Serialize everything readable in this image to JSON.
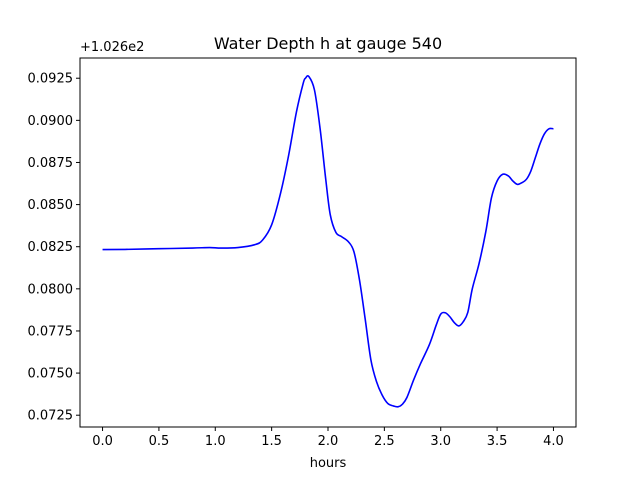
{
  "chart_data": {
    "type": "line",
    "title": "Water Depth h at gauge 540",
    "xlabel": "hours",
    "ylabel": "",
    "y_offset_label": "+1.026e2",
    "y_offset": 102.6,
    "xlim": [
      -0.2,
      4.2
    ],
    "ylim": [
      0.0718,
      0.0937
    ],
    "xticks": [
      0.0,
      0.5,
      1.0,
      1.5,
      2.0,
      2.5,
      3.0,
      3.5,
      4.0
    ],
    "xtick_labels": [
      "0.0",
      "0.5",
      "1.0",
      "1.5",
      "2.0",
      "2.5",
      "3.0",
      "3.5",
      "4.0"
    ],
    "yticks": [
      0.0725,
      0.075,
      0.0775,
      0.08,
      0.0825,
      0.085,
      0.0875,
      0.09,
      0.0925
    ],
    "ytick_labels": [
      "0.0725",
      "0.0750",
      "0.0775",
      "0.0800",
      "0.0825",
      "0.0850",
      "0.0875",
      "0.0900",
      "0.0925"
    ],
    "grid": false,
    "series": [
      {
        "color": "#0000ff",
        "x": [
          0.0,
          0.2,
          0.5,
          0.8,
          0.95,
          1.05,
          1.2,
          1.35,
          1.42,
          1.5,
          1.58,
          1.65,
          1.72,
          1.78,
          1.8,
          1.83,
          1.88,
          1.93,
          1.98,
          2.02,
          2.07,
          2.12,
          2.18,
          2.23,
          2.28,
          2.33,
          2.38,
          2.43,
          2.48,
          2.53,
          2.58,
          2.62,
          2.66,
          2.7,
          2.76,
          2.82,
          2.9,
          2.96,
          3.0,
          3.04,
          3.08,
          3.12,
          3.16,
          3.2,
          3.24,
          3.28,
          3.34,
          3.4,
          3.45,
          3.5,
          3.55,
          3.6,
          3.64,
          3.68,
          3.72,
          3.76,
          3.8,
          3.84,
          3.88,
          3.92,
          3.96,
          4.0
        ],
        "y": [
          0.08233,
          0.08234,
          0.08238,
          0.08242,
          0.08245,
          0.08242,
          0.08245,
          0.08262,
          0.0829,
          0.0838,
          0.0857,
          0.0879,
          0.0905,
          0.0922,
          0.0925,
          0.0926,
          0.0918,
          0.0895,
          0.0865,
          0.0844,
          0.08335,
          0.0831,
          0.0828,
          0.0822,
          0.0805,
          0.0782,
          0.0758,
          0.0745,
          0.0737,
          0.0732,
          0.07305,
          0.073,
          0.07315,
          0.07355,
          0.0746,
          0.07555,
          0.0767,
          0.07785,
          0.0785,
          0.07858,
          0.07835,
          0.078,
          0.0778,
          0.07805,
          0.0786,
          0.08,
          0.0815,
          0.0834,
          0.0854,
          0.0864,
          0.0868,
          0.0867,
          0.0864,
          0.0862,
          0.0863,
          0.0865,
          0.087,
          0.0878,
          0.0886,
          0.0892,
          0.0895,
          0.0895
        ]
      }
    ]
  }
}
